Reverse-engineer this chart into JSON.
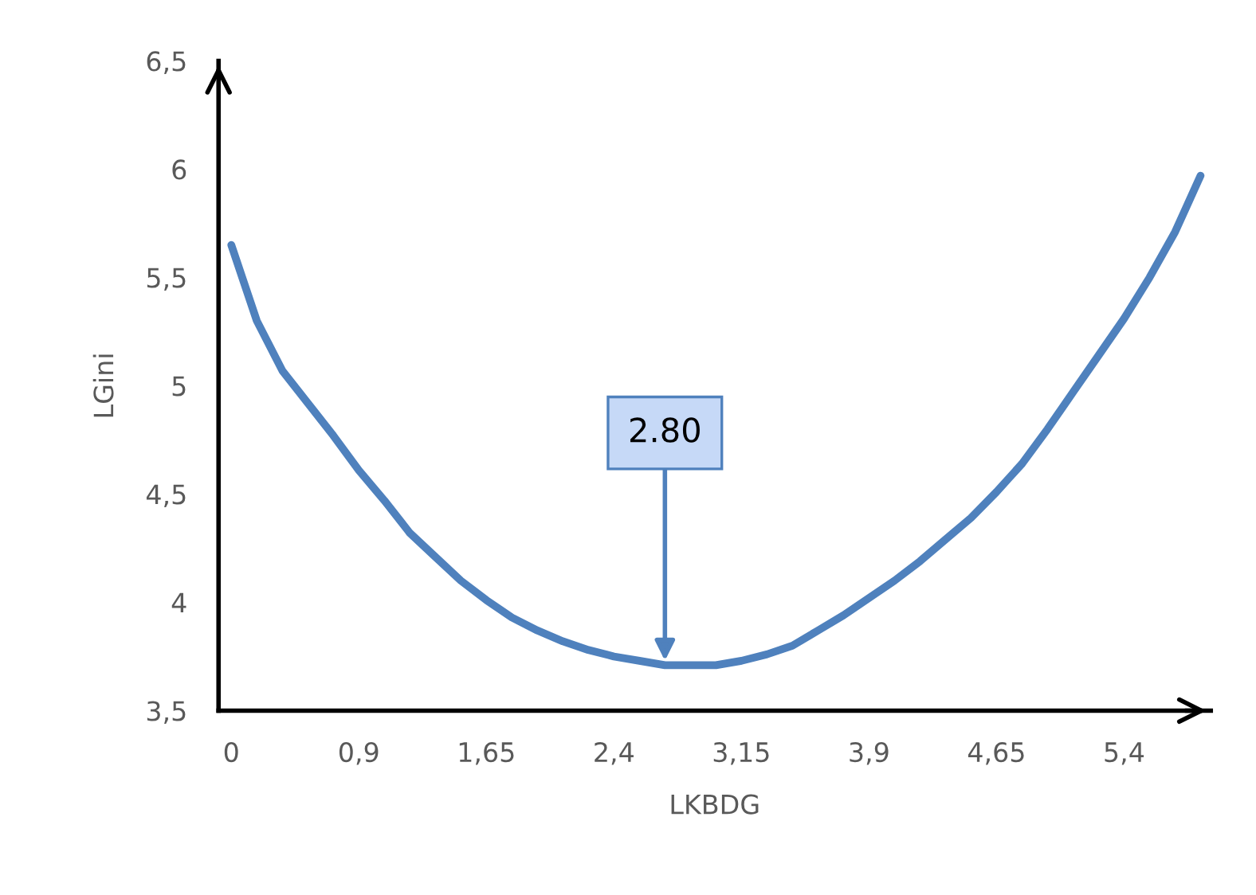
{
  "chart_data": {
    "type": "line",
    "xlabel": "LKBDG",
    "ylabel": "LGini",
    "categories": [
      "0",
      null,
      null,
      null,
      null,
      "0,9",
      null,
      null,
      null,
      null,
      "1,65",
      null,
      null,
      null,
      null,
      "2,4",
      null,
      null,
      null,
      null,
      "3,15",
      null,
      null,
      null,
      null,
      "3,9",
      null,
      null,
      null,
      null,
      "4,65",
      null,
      null,
      null,
      null,
      "5,4",
      null,
      null,
      null
    ],
    "series": [
      {
        "color": "#4f81bd",
        "values": [
          5.65,
          5.3,
          5.07,
          4.92,
          4.77,
          4.61,
          4.47,
          4.32,
          4.21,
          4.1,
          4.01,
          3.93,
          3.87,
          3.82,
          3.78,
          3.75,
          3.73,
          3.71,
          3.71,
          3.71,
          3.73,
          3.76,
          3.8,
          3.87,
          3.94,
          4.02,
          4.1,
          4.19,
          4.29,
          4.39,
          4.51,
          4.64,
          4.8,
          4.97,
          5.14,
          5.31,
          5.5,
          5.71,
          5.97
        ]
      }
    ],
    "ylim": [
      3.5,
      6.5
    ],
    "yticks": [
      {
        "value": 3.5,
        "label": "3,5"
      },
      4,
      {
        "value": 4.5,
        "label": "4,5"
      },
      5,
      {
        "value": 5.5,
        "label": "5,5"
      },
      6,
      {
        "value": 6.5,
        "label": "6,5"
      }
    ],
    "annotations": [
      {
        "text": "2.80",
        "y": 3.71
      }
    ],
    "grid": false,
    "legend": false,
    "marker": "none",
    "line_style": "solid"
  }
}
